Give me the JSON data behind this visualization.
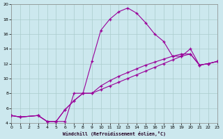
{
  "xlabel": "Windchill (Refroidissement éolien,°C)",
  "xlim": [
    0,
    23
  ],
  "ylim": [
    4,
    20
  ],
  "xticks": [
    0,
    1,
    2,
    3,
    4,
    5,
    6,
    7,
    8,
    9,
    10,
    11,
    12,
    13,
    14,
    15,
    16,
    17,
    18,
    19,
    20,
    21,
    22,
    23
  ],
  "yticks": [
    4,
    6,
    8,
    10,
    12,
    14,
    16,
    18,
    20
  ],
  "bg_color": "#cce8ee",
  "line_color": "#990099",
  "grid_color": "#aacccc",
  "curve1_x": [
    0,
    1,
    3,
    4,
    5,
    6,
    7,
    8,
    9,
    10,
    11,
    12,
    13,
    14,
    15,
    16,
    17,
    18,
    19,
    20,
    21,
    22,
    23
  ],
  "curve1_y": [
    5.0,
    4.8,
    5.0,
    4.2,
    4.2,
    4.2,
    8.0,
    8.0,
    12.3,
    16.5,
    18.0,
    19.0,
    19.5,
    18.8,
    17.5,
    16.0,
    15.0,
    13.0,
    13.0,
    14.0,
    11.8,
    12.0,
    12.3
  ],
  "curve2_x": [
    0,
    1,
    3,
    4,
    5,
    6,
    7,
    8,
    9,
    10,
    11,
    12,
    13,
    14,
    15,
    16,
    17,
    18,
    19,
    20,
    21,
    22,
    23
  ],
  "curve2_y": [
    5.0,
    4.8,
    5.0,
    4.2,
    4.2,
    5.8,
    7.0,
    8.0,
    8.0,
    8.5,
    9.0,
    9.5,
    10.0,
    10.5,
    11.0,
    11.5,
    12.0,
    12.5,
    13.0,
    13.3,
    11.8,
    12.0,
    12.3
  ],
  "curve3_x": [
    0,
    1,
    3,
    4,
    5,
    6,
    7,
    8,
    9,
    10,
    11,
    12,
    13,
    14,
    15,
    16,
    17,
    18,
    19,
    20,
    21,
    22,
    23
  ],
  "curve3_y": [
    5.0,
    4.8,
    5.0,
    4.2,
    4.2,
    5.8,
    7.0,
    8.0,
    8.0,
    9.0,
    9.7,
    10.3,
    10.8,
    11.3,
    11.8,
    12.2,
    12.6,
    13.0,
    13.3,
    13.3,
    11.8,
    12.0,
    12.3
  ]
}
